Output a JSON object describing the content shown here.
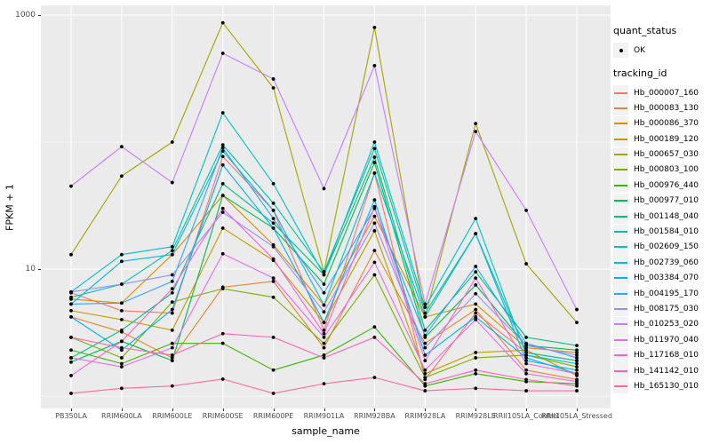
{
  "axes": {
    "x_title": "sample_name",
    "y_title": "FPKM + 1",
    "y_tick_labels": [
      "1000",
      "10"
    ],
    "tick_color": "#333333",
    "tick_label_color": "#4D4D4D"
  },
  "legend": {
    "quant_status": {
      "title": "quant_status",
      "items": [
        {
          "label": "OK",
          "symbol": "black-point"
        }
      ]
    },
    "tracking": {
      "title": "tracking_id"
    }
  },
  "style": {
    "panel_background": "#EBEBEB",
    "grid_color": "#FFFFFF",
    "legend_key_background": "#F2F2F2",
    "point_color": "#000000"
  },
  "chart_data": {
    "type": "line",
    "title": "",
    "xlabel": "sample_name",
    "ylabel": "FPKM + 1",
    "x_type": "categorical",
    "y_scale": "log10",
    "ylim": [
      0.9,
      1200
    ],
    "y_labeled_breaks": [
      1000,
      10
    ],
    "y_gridlines": [
      1000,
      100,
      10,
      1
    ],
    "grid": true,
    "legend_position": "right",
    "point_marker": "filled black circle (quant_status = OK)",
    "categories": [
      "PB350LA",
      "RRIM600LA",
      "RRIM600LE",
      "RRIM600SE",
      "RRIM600PE",
      "RRIM901LA",
      "RRIM928BA",
      "RRIM928LA",
      "RRIM928LE",
      "RRII105LA_Control",
      "RRII105LA_Stressed"
    ],
    "series": [
      {
        "name": "Hb_000007_160",
        "color": "#F8766D",
        "values": [
          6.5,
          4.7,
          4.5,
          77,
          29,
          3.3,
          57,
          1.35,
          4.5,
          2.2,
          1.9
        ]
      },
      {
        "name": "Hb_000083_130",
        "color": "#EA8331",
        "values": [
          4.2,
          3.2,
          2.0,
          7.2,
          8.0,
          2.4,
          14,
          2.6,
          4.8,
          1.6,
          1.35
        ]
      },
      {
        "name": "Hb_000086_370",
        "color": "#D89000",
        "values": [
          5.8,
          5.4,
          13,
          38,
          15.5,
          5.2,
          26,
          4.2,
          5.3,
          2.4,
          2.2
        ]
      },
      {
        "name": "Hb_000189_120",
        "color": "#C09B00",
        "values": [
          4.7,
          4.0,
          3.3,
          21,
          11.7,
          3.8,
          20,
          1.5,
          2.2,
          2.3,
          1.45
        ]
      },
      {
        "name": "Hb_000657_030",
        "color": "#A3A500",
        "values": [
          13,
          54,
          100,
          870,
          267,
          9.5,
          800,
          4.2,
          140,
          11,
          3.8
        ]
      },
      {
        "name": "Hb_000803_100",
        "color": "#7CAE00",
        "values": [
          2.9,
          2.0,
          5.5,
          7.0,
          6.0,
          2.6,
          9.0,
          1.4,
          2.0,
          2.1,
          1.7
        ]
      },
      {
        "name": "Hb_000976_440",
        "color": "#39B600",
        "values": [
          2.3,
          1.8,
          2.6,
          2.6,
          1.6,
          2.1,
          3.5,
          1.2,
          1.5,
          1.3,
          1.25
        ]
      },
      {
        "name": "Hb_000977_010",
        "color": "#00BB4E",
        "values": [
          1.85,
          2.7,
          1.9,
          38,
          21,
          7.6,
          69,
          2.9,
          7.5,
          2.5,
          2.3
        ]
      },
      {
        "name": "Hb_001148_040",
        "color": "#00BF7D",
        "values": [
          2.0,
          3.3,
          6.5,
          47,
          23,
          9.0,
          76,
          3.3,
          9.5,
          2.9,
          2.5
        ]
      },
      {
        "name": "Hb_001584_010",
        "color": "#00C1A3",
        "values": [
          6.0,
          7.6,
          14,
          95,
          33,
          9.5,
          89,
          4.5,
          19,
          2.2,
          1.9
        ]
      },
      {
        "name": "Hb_002609_150",
        "color": "#00BFC4",
        "values": [
          6.6,
          13,
          15,
          170,
          47,
          9.0,
          100,
          5.0,
          25,
          2.1,
          1.8
        ]
      },
      {
        "name": "Hb_002739_060",
        "color": "#00BADE",
        "values": [
          5.3,
          11.5,
          13,
          85,
          29,
          5.2,
          57,
          4.2,
          19,
          1.9,
          1.6
        ]
      },
      {
        "name": "Hb_003384_070",
        "color": "#00B0F6",
        "values": [
          4.2,
          2.3,
          4.8,
          66,
          21,
          3.8,
          35,
          2.1,
          4.2,
          2.0,
          1.5
        ]
      },
      {
        "name": "Hb_004195_170",
        "color": "#35A2FF",
        "values": [
          5.3,
          5.4,
          8.0,
          90,
          25,
          6.5,
          30,
          3.0,
          10.5,
          2.6,
          2.0
        ]
      },
      {
        "name": "Hb_008175_030",
        "color": "#9590FF",
        "values": [
          6.6,
          7.6,
          9.0,
          28,
          15,
          4.6,
          23,
          2.4,
          6.4,
          2.5,
          2.1
        ]
      },
      {
        "name": "Hb_010253_020",
        "color": "#C77CFF",
        "values": [
          45,
          92,
          48,
          500,
          314,
          43,
          400,
          5.3,
          121,
          29,
          4.8
        ]
      },
      {
        "name": "Hb_011970_040",
        "color": "#E76BF3",
        "values": [
          2.0,
          1.7,
          2.4,
          13.2,
          8.5,
          2.9,
          11.3,
          1.6,
          4.0,
          1.5,
          1.3
        ]
      },
      {
        "name": "Hb_117168_010",
        "color": "#FA62DB",
        "values": [
          1.45,
          2.7,
          7.0,
          30,
          12,
          3.1,
          31,
          1.9,
          8.5,
          1.8,
          1.5
        ]
      },
      {
        "name": "Hb_141142_010",
        "color": "#FF62BC",
        "values": [
          2.9,
          2.4,
          2.1,
          3.1,
          2.9,
          2.0,
          2.9,
          1.25,
          1.6,
          1.35,
          1.2
        ]
      },
      {
        "name": "Hb_165130_010",
        "color": "#FF6A98",
        "values": [
          1.05,
          1.15,
          1.2,
          1.36,
          1.05,
          1.25,
          1.4,
          1.1,
          1.15,
          1.1,
          1.1
        ]
      }
    ]
  }
}
